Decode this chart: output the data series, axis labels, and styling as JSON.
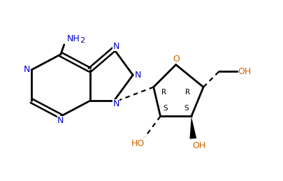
{
  "bg_color": "#ffffff",
  "atom_color": "#000000",
  "n_color": "#0000cd",
  "o_color": "#cc6600",
  "bond_lw": 2.0,
  "font_size": 9,
  "xlim": [
    0.3,
    8.5
  ],
  "ylim": [
    1.2,
    5.8
  ]
}
